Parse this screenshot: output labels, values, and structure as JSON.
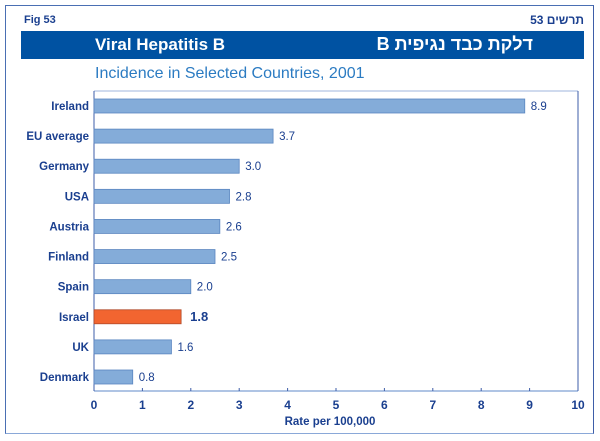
{
  "header": {
    "fig_label": "Fig  53",
    "fig_label_he": "תרשים 53",
    "title_en": "Viral Hepatitis B",
    "title_he": "דלקת כבד נגיפית B",
    "subtitle": "Incidence in Selected Countries, 2001"
  },
  "colors": {
    "banner": "#0052a2",
    "bar": "#84acd9",
    "bar_border": "#5a86c0",
    "highlight_bar": "#f26530",
    "highlight_border": "#b04a2a",
    "text": "#1a3f8f"
  },
  "chart_data": {
    "type": "bar",
    "orientation": "horizontal",
    "title": "Incidence in Selected Countries, 2001",
    "xlabel": "Rate per 100,000",
    "ylabel": "",
    "categories": [
      "Ireland",
      "EU average",
      "Germany",
      "USA",
      "Austria",
      "Finland",
      "Spain",
      "Israel",
      "UK",
      "Denmark"
    ],
    "values": [
      8.9,
      3.7,
      3.0,
      2.8,
      2.6,
      2.5,
      2.0,
      1.8,
      1.6,
      0.8
    ],
    "value_labels": [
      "8.9",
      "3.7",
      "3.0",
      "2.8",
      "2.6",
      "2.5",
      "2.0",
      "1.8",
      "1.6",
      "0.8"
    ],
    "highlight": "Israel",
    "xlim": [
      0,
      10
    ],
    "xticks": [
      0,
      1,
      2,
      3,
      4,
      5,
      6,
      7,
      8,
      9,
      10
    ],
    "grid": false,
    "legend": "none"
  }
}
